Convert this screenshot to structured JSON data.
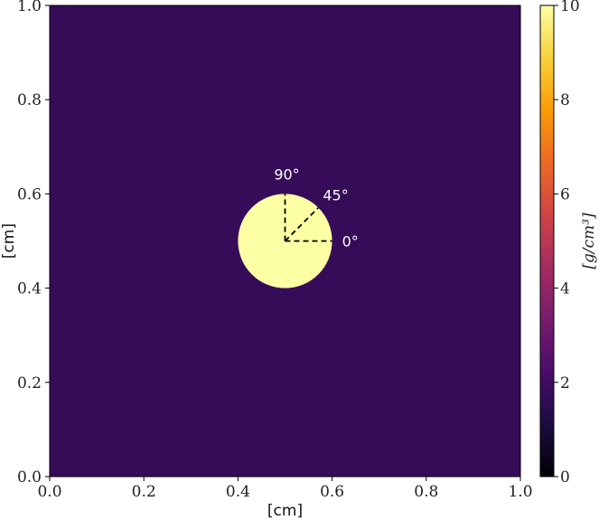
{
  "chart_data": {
    "type": "heatmap",
    "xlabel": "[cm]",
    "ylabel": "[cm]",
    "xlim": [
      0.0,
      1.0
    ],
    "ylim": [
      0.0,
      1.0
    ],
    "x_ticks": [
      "0.0",
      "0.2",
      "0.4",
      "0.6",
      "0.8",
      "1.0"
    ],
    "y_ticks": [
      "0.0",
      "0.2",
      "0.4",
      "0.6",
      "0.8",
      "1.0"
    ],
    "grid": false,
    "background_density": 1.75,
    "disk": {
      "center": [
        0.5,
        0.5
      ],
      "radius": 0.1,
      "density": 10
    },
    "angle_markers": [
      {
        "label": "0°",
        "angle_deg": 0
      },
      {
        "label": "45°",
        "angle_deg": 45
      },
      {
        "label": "90°",
        "angle_deg": 90
      }
    ],
    "colorbar": {
      "label": "[g/cm³]",
      "range": [
        0,
        10
      ],
      "ticks": [
        "0",
        "2",
        "4",
        "6",
        "8",
        "10"
      ],
      "colormap": "inferno",
      "stops": [
        "#000004",
        "#1b0c41",
        "#4a0c6b",
        "#781c6d",
        "#a52c60",
        "#cf4446",
        "#ed6925",
        "#fb9b06",
        "#f7d13d",
        "#fcffa4"
      ]
    }
  }
}
